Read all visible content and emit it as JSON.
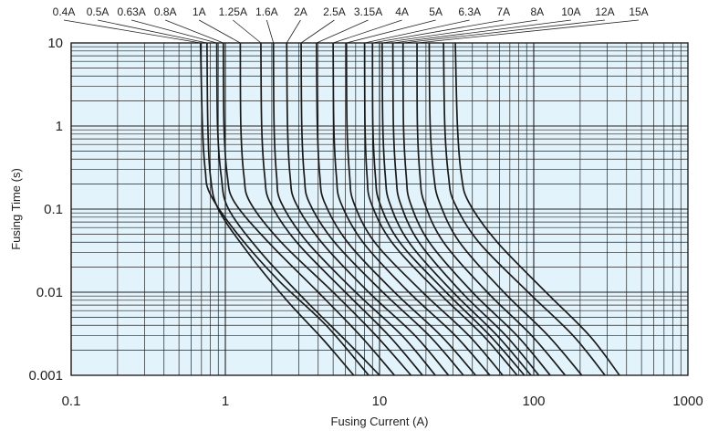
{
  "chart_data": {
    "type": "line",
    "xlabel": "Fusing Current (A)",
    "ylabel": "Fusing Time (s)",
    "xscale": "log",
    "yscale": "log",
    "xlim": [
      0.1,
      1000
    ],
    "ylim": [
      0.001,
      10
    ],
    "x_tick_labels": [
      "0.1",
      "1",
      "10",
      "100",
      "1000"
    ],
    "y_tick_labels": [
      "0.001",
      "0.01",
      "0.1",
      "1",
      "10"
    ],
    "grid": true,
    "colors": {
      "background": "#e3f3fb",
      "grid": "#222222",
      "curve": "#1a1a1a"
    },
    "series": [
      {
        "name": "0.4A",
        "values": [
          [
            0.69,
            10
          ],
          [
            0.71,
            1
          ],
          [
            0.74,
            0.3
          ],
          [
            0.8,
            0.15
          ],
          [
            1.2,
            0.05
          ],
          [
            2.2,
            0.014
          ],
          [
            4.5,
            0.004
          ],
          [
            8.5,
            0.001
          ]
        ]
      },
      {
        "name": "0.5A",
        "values": [
          [
            0.76,
            10
          ],
          [
            0.77,
            1
          ],
          [
            0.8,
            0.25
          ],
          [
            0.9,
            0.1
          ],
          [
            1.4,
            0.03
          ],
          [
            2.5,
            0.008
          ],
          [
            4.3,
            0.0027
          ],
          [
            6.8,
            0.001
          ]
        ]
      },
      {
        "name": "0.63A",
        "values": [
          [
            0.88,
            10
          ],
          [
            0.89,
            1
          ],
          [
            0.94,
            0.25
          ],
          [
            1.05,
            0.1
          ],
          [
            1.7,
            0.03
          ],
          [
            3.3,
            0.008
          ],
          [
            6.2,
            0.0025
          ],
          [
            10,
            0.001
          ]
        ]
      },
      {
        "name": "0.8A",
        "values": [
          [
            0.97,
            10
          ],
          [
            0.98,
            1
          ],
          [
            1.03,
            0.25
          ],
          [
            1.15,
            0.12
          ],
          [
            1.9,
            0.04
          ],
          [
            4,
            0.01
          ],
          [
            7.5,
            0.003
          ],
          [
            12.5,
            0.001
          ]
        ]
      },
      {
        "name": "1A",
        "values": [
          [
            1.25,
            10
          ],
          [
            1.26,
            1
          ],
          [
            1.32,
            0.25
          ],
          [
            1.45,
            0.12
          ],
          [
            2.3,
            0.04
          ],
          [
            5,
            0.01
          ],
          [
            9.5,
            0.003
          ],
          [
            16,
            0.001
          ]
        ]
      },
      {
        "name": "1.25A",
        "values": [
          [
            1.7,
            10
          ],
          [
            1.72,
            1
          ],
          [
            1.8,
            0.25
          ],
          [
            1.95,
            0.12
          ],
          [
            2.9,
            0.04
          ],
          [
            6,
            0.01
          ],
          [
            11.5,
            0.003
          ],
          [
            19,
            0.001
          ]
        ]
      },
      {
        "name": "1.6A",
        "values": [
          [
            2.05,
            10
          ],
          [
            2.07,
            1
          ],
          [
            2.15,
            0.25
          ],
          [
            2.3,
            0.12
          ],
          [
            3.4,
            0.04
          ],
          [
            7,
            0.01
          ],
          [
            14,
            0.003
          ],
          [
            23,
            0.001
          ]
        ]
      },
      {
        "name": "2A",
        "values": [
          [
            2.5,
            10
          ],
          [
            2.53,
            1
          ],
          [
            2.63,
            0.25
          ],
          [
            2.85,
            0.12
          ],
          [
            4.2,
            0.04
          ],
          [
            8.5,
            0.01
          ],
          [
            17,
            0.003
          ],
          [
            28,
            0.001
          ]
        ]
      },
      {
        "name": "2.5A",
        "values": [
          [
            3.1,
            10
          ],
          [
            3.13,
            1
          ],
          [
            3.25,
            0.25
          ],
          [
            3.5,
            0.12
          ],
          [
            5.1,
            0.04
          ],
          [
            10.5,
            0.01
          ],
          [
            21,
            0.003
          ],
          [
            35,
            0.001
          ]
        ]
      },
      {
        "name": "3.15A",
        "values": [
          [
            3.9,
            10
          ],
          [
            3.95,
            1
          ],
          [
            4.1,
            0.25
          ],
          [
            4.4,
            0.12
          ],
          [
            6.2,
            0.04
          ],
          [
            12.5,
            0.01
          ],
          [
            25,
            0.003
          ],
          [
            42,
            0.001
          ]
        ]
      },
      {
        "name": "4A",
        "values": [
          [
            5,
            10
          ],
          [
            5.05,
            1
          ],
          [
            5.25,
            0.25
          ],
          [
            5.6,
            0.12
          ],
          [
            7.8,
            0.04
          ],
          [
            15.5,
            0.01
          ],
          [
            31,
            0.003
          ],
          [
            52,
            0.001
          ]
        ]
      },
      {
        "name": "5A",
        "values": [
          [
            6.1,
            10
          ],
          [
            6.15,
            1
          ],
          [
            6.4,
            0.25
          ],
          [
            6.8,
            0.12
          ],
          [
            9.3,
            0.04
          ],
          [
            19,
            0.01
          ],
          [
            38,
            0.003
          ],
          [
            63,
            0.001
          ]
        ]
      },
      {
        "name": "6.3A",
        "values": [
          [
            8,
            10
          ],
          [
            8.05,
            1
          ],
          [
            8.3,
            0.25
          ],
          [
            8.8,
            0.12
          ],
          [
            12,
            0.04
          ],
          [
            24,
            0.01
          ],
          [
            47,
            0.003
          ],
          [
            78,
            0.001
          ]
        ]
      },
      {
        "name": "7A",
        "values": [
          [
            9,
            10
          ],
          [
            9.05,
            1
          ],
          [
            9.4,
            0.25
          ],
          [
            10,
            0.12
          ],
          [
            13.5,
            0.04
          ],
          [
            27,
            0.01
          ],
          [
            52,
            0.003
          ],
          [
            87,
            0.001
          ]
        ]
      },
      {
        "name": "8A",
        "values": [
          [
            10.4,
            10
          ],
          [
            10.5,
            1
          ],
          [
            10.9,
            0.25
          ],
          [
            11.6,
            0.12
          ],
          [
            15.5,
            0.04
          ],
          [
            30,
            0.01
          ],
          [
            58,
            0.003
          ],
          [
            96,
            0.001
          ]
        ]
      },
      {
        "name": "10A",
        "values": [
          [
            12.2,
            10
          ],
          [
            12.3,
            1
          ],
          [
            12.8,
            0.25
          ],
          [
            13.6,
            0.12
          ],
          [
            18,
            0.04
          ],
          [
            34,
            0.01
          ],
          [
            66,
            0.003
          ],
          [
            108,
            0.001
          ]
        ]
      },
      {
        "name": "12A",
        "values": [
          [
            14.2,
            10
          ],
          [
            14.3,
            1
          ],
          [
            14.9,
            0.25
          ],
          [
            15.8,
            0.12
          ],
          [
            21,
            0.04
          ],
          [
            40,
            0.01
          ],
          [
            78,
            0.003
          ],
          [
            128,
            0.001
          ]
        ]
      },
      {
        "name": "15A",
        "values": [
          [
            17.5,
            10
          ],
          [
            17.6,
            1
          ],
          [
            18.3,
            0.25
          ],
          [
            19.5,
            0.12
          ],
          [
            26,
            0.04
          ],
          [
            50,
            0.01
          ],
          [
            97,
            0.003
          ],
          [
            160,
            0.001
          ]
        ]
      },
      {
        "name": "",
        "values": [
          [
            21,
            10
          ],
          [
            21.3,
            1
          ],
          [
            22.5,
            0.25
          ],
          [
            24.5,
            0.12
          ],
          [
            33,
            0.04
          ],
          [
            64,
            0.01
          ],
          [
            124,
            0.003
          ],
          [
            205,
            0.001
          ]
        ]
      },
      {
        "name": "",
        "values": [
          [
            26,
            10
          ],
          [
            26.5,
            1
          ],
          [
            28,
            0.25
          ],
          [
            30.5,
            0.12
          ],
          [
            44,
            0.04
          ],
          [
            92,
            0.01
          ],
          [
            180,
            0.003
          ],
          [
            290,
            0.001
          ]
        ]
      },
      {
        "name": "",
        "values": [
          [
            31,
            10
          ],
          [
            32,
            1
          ],
          [
            34,
            0.25
          ],
          [
            38,
            0.12
          ],
          [
            58,
            0.04
          ],
          [
            120,
            0.01
          ],
          [
            230,
            0.003
          ],
          [
            360,
            0.001
          ]
        ]
      }
    ]
  }
}
